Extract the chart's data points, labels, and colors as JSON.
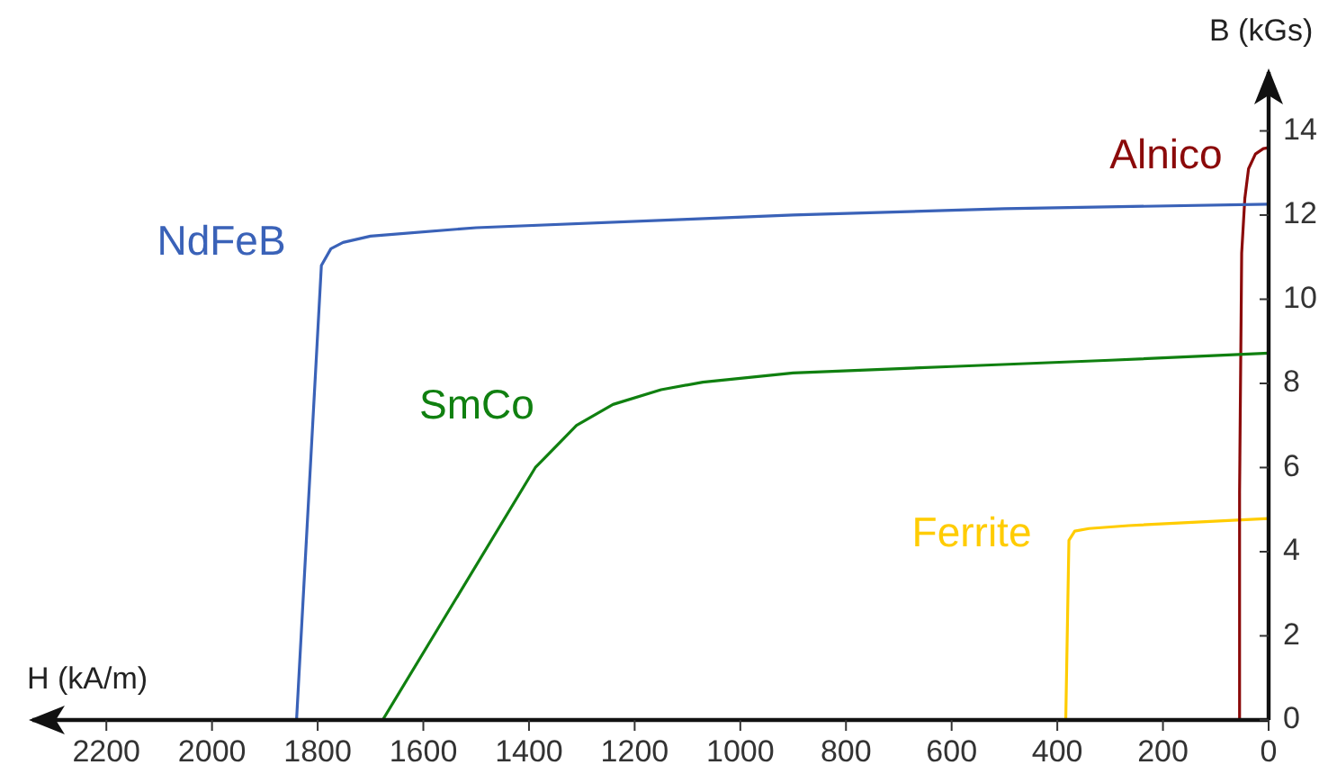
{
  "chart_data": {
    "type": "line",
    "xlabel": "H (kA/m)",
    "ylabel": "B (kGs)",
    "xlim": [
      2340,
      0
    ],
    "xticks": [
      2200,
      2000,
      1800,
      1600,
      1400,
      1200,
      1000,
      800,
      600,
      400,
      200,
      0
    ],
    "ylim": [
      0,
      15.4
    ],
    "yticks": [
      0,
      2,
      4,
      6,
      8,
      10,
      12,
      14
    ],
    "grid": false,
    "legend": false,
    "marker": "none",
    "line_style": "solid",
    "series": [
      {
        "name": "NdFeB",
        "color": "#3a62b8",
        "x": [
          1840,
          1793,
          1775,
          1752,
          1700,
          1500,
          1100,
          900,
          500,
          0
        ],
        "values": [
          0,
          10.8,
          11.2,
          11.35,
          11.5,
          11.7,
          11.9,
          12.0,
          12.15,
          12.26
        ]
      },
      {
        "name": "SmCo",
        "color": "#108010",
        "x": [
          1677,
          1388,
          1310,
          1241,
          1150,
          1071,
          900,
          600,
          300,
          0
        ],
        "values": [
          0,
          6.0,
          7.0,
          7.5,
          7.85,
          8.03,
          8.25,
          8.4,
          8.55,
          8.72
        ]
      },
      {
        "name": "Alnico",
        "color": "#8b0a0a",
        "x": [
          57,
          55,
          51,
          45,
          38,
          25,
          10,
          0
        ],
        "values": [
          0,
          5.4,
          11.1,
          12.4,
          13.1,
          13.45,
          13.58,
          13.6
        ]
      },
      {
        "name": "Ferrite",
        "color": "#ffcc00",
        "x": [
          384,
          378,
          367,
          340,
          265,
          0
        ],
        "values": [
          0,
          4.27,
          4.49,
          4.55,
          4.62,
          4.79
        ]
      }
    ]
  }
}
